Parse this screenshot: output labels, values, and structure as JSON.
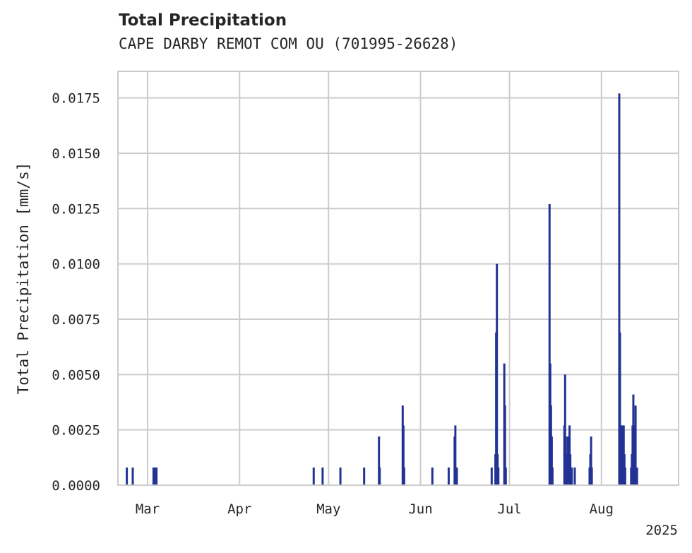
{
  "chart_data": {
    "type": "bar",
    "title": "Total Precipitation",
    "subtitle": "CAPE DARBY REMOT COM OU (701995-26628)",
    "ylabel": "Total Precipitation [mm/s]",
    "xlabel": "",
    "year_label": "2025",
    "xlim": [
      "2025-02-19",
      "2025-08-27"
    ],
    "ylim": [
      0,
      0.0187
    ],
    "yticks": [
      0.0,
      0.0025,
      0.005,
      0.0075,
      0.01,
      0.0125,
      0.015,
      0.0175
    ],
    "ytick_labels": [
      "0.0000",
      "0.0025",
      "0.0050",
      "0.0075",
      "0.0100",
      "0.0125",
      "0.0150",
      "0.0175"
    ],
    "xticks": [
      "2025-03-01",
      "2025-04-01",
      "2025-05-01",
      "2025-06-01",
      "2025-07-01",
      "2025-08-01"
    ],
    "xtick_labels": [
      "Mar",
      "Apr",
      "May",
      "Jun",
      "Jul",
      "Aug"
    ],
    "grid": true,
    "bar_color": "#233394",
    "series": [
      {
        "x": [
          "2025-02-22T00:00",
          "2025-02-24T00:00",
          "2025-03-03T00:00",
          "2025-03-03T12:00",
          "2025-03-04T00:00",
          "2025-04-26T00:00",
          "2025-04-29T00:00",
          "2025-05-05T00:00",
          "2025-05-13T00:00",
          "2025-05-18T00:00",
          "2025-05-18T06:00",
          "2025-05-26T00:00",
          "2025-05-26T06:00",
          "2025-05-26T12:00",
          "2025-06-05T00:00",
          "2025-06-10T12:00",
          "2025-06-12T12:00",
          "2025-06-12T18:00",
          "2025-06-13T00:00",
          "2025-06-13T06:00",
          "2025-06-25T00:00",
          "2025-06-26T06:00",
          "2025-06-26T12:00",
          "2025-06-26T18:00",
          "2025-06-27T00:00",
          "2025-06-27T06:00",
          "2025-06-29T06:00",
          "2025-06-29T12:00",
          "2025-06-29T18:00",
          "2025-07-14T12:00",
          "2025-07-14T18:00",
          "2025-07-15T00:00",
          "2025-07-15T06:00",
          "2025-07-15T12:00",
          "2025-07-19T12:00",
          "2025-07-19T18:00",
          "2025-07-20T00:00",
          "2025-07-20T06:00",
          "2025-07-20T12:00",
          "2025-07-20T18:00",
          "2025-07-21T00:00",
          "2025-07-21T06:00",
          "2025-07-21T12:00",
          "2025-07-21T18:00",
          "2025-07-22T00:00",
          "2025-07-23T00:00",
          "2025-07-28T00:00",
          "2025-07-28T06:00",
          "2025-07-28T12:00",
          "2025-07-28T18:00",
          "2025-08-07T00:00",
          "2025-08-07T06:00",
          "2025-08-07T12:00",
          "2025-08-07T18:00",
          "2025-08-08T00:00",
          "2025-08-08T06:00",
          "2025-08-08T12:00",
          "2025-08-08T18:00",
          "2025-08-09T00:00",
          "2025-08-11T00:00",
          "2025-08-11T06:00",
          "2025-08-11T12:00",
          "2025-08-11T18:00",
          "2025-08-12T00:00",
          "2025-08-12T06:00",
          "2025-08-12T12:00",
          "2025-08-12T18:00",
          "2025-08-13T00:00"
        ],
        "values": [
          0.0008,
          0.0008,
          0.0008,
          0.0008,
          0.0008,
          0.0008,
          0.0008,
          0.0008,
          0.0008,
          0.0022,
          0.0008,
          0.0036,
          0.0027,
          0.0008,
          0.0008,
          0.0008,
          0.0022,
          0.0027,
          0.0008,
          0.0008,
          0.0008,
          0.0014,
          0.0069,
          0.01,
          0.0014,
          0.0008,
          0.0055,
          0.0036,
          0.0008,
          0.0127,
          0.0055,
          0.0036,
          0.0022,
          0.0008,
          0.0027,
          0.005,
          0.0022,
          0.0014,
          0.0008,
          0.0022,
          0.0008,
          0.0027,
          0.0014,
          0.0008,
          0.0008,
          0.0008,
          0.0008,
          0.0014,
          0.0022,
          0.0008,
          0.0177,
          0.0069,
          0.0027,
          0.0027,
          0.0027,
          0.0014,
          0.0027,
          0.0014,
          0.0008,
          0.0008,
          0.0014,
          0.0027,
          0.0041,
          0.0027,
          0.0014,
          0.0036,
          0.0008,
          0.0008
        ]
      }
    ]
  }
}
